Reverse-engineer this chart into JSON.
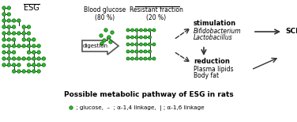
{
  "bg_color": "#ffffff",
  "glucose_color": "#33bb33",
  "glucose_edge_color": "#006600",
  "link_color": "#222222",
  "title": "Possible metabolic pathway of ESG in rats",
  "legend_text": " ; glucose,  –  ; α-1,4 linkage,  | ; α-1,6 linkage",
  "esg_label": "ESG",
  "blood_glucose_label": "Blood glucose\n(80 %)",
  "resistant_fraction_label": "Resistant fraction\n(20 %)",
  "digestion_label": "digestion",
  "stimulation_label": "stimulation",
  "bifido_label": "Bifidobacterium",
  "lacto_label": "Lactobacillus",
  "scfa_label": "SCFAs",
  "reduction_label": "reduction",
  "plasma_label": "Plasma lipids",
  "bodyfat_label": "Body fat",
  "figw": 3.76,
  "figh": 1.54,
  "dpi": 100
}
